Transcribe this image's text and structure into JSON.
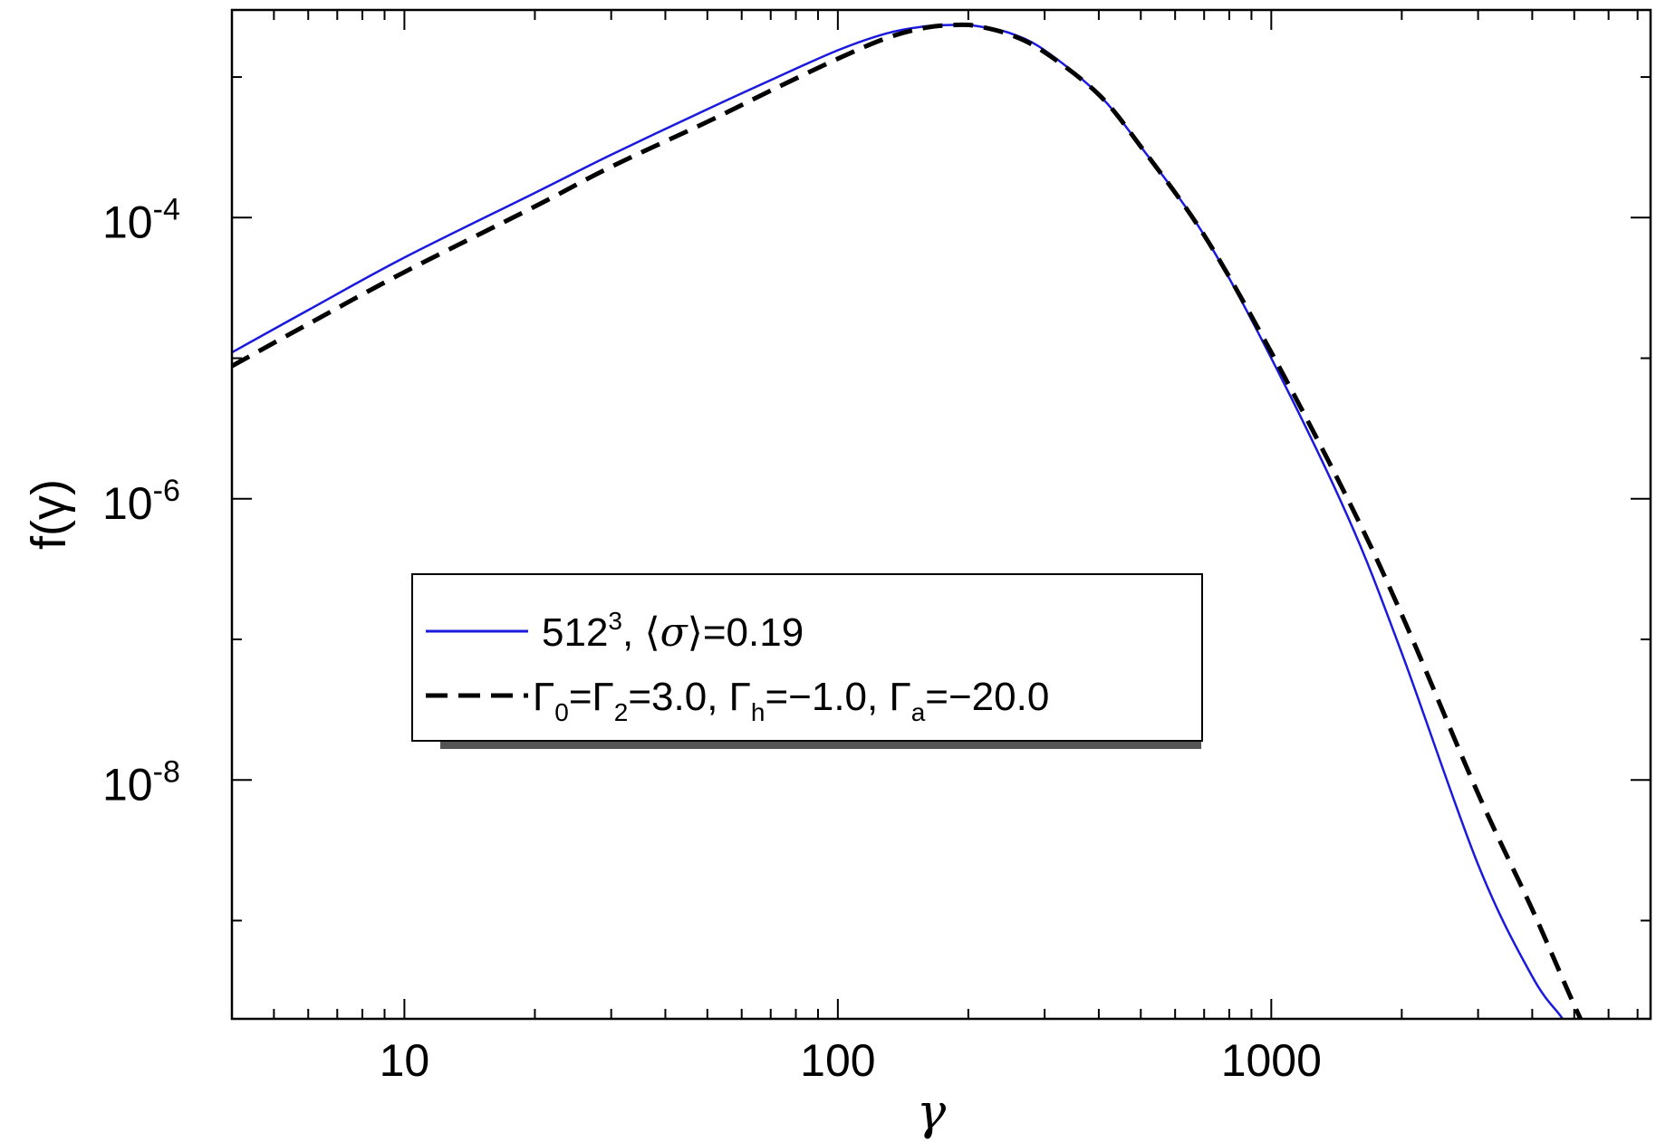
{
  "chart_data": {
    "type": "line",
    "title": "",
    "xlabel": "γ",
    "ylabel": "f(γ)",
    "xscale": "log",
    "yscale": "log",
    "xlim": [
      4,
      7500
    ],
    "ylim": [
      2e-10,
      0.003
    ],
    "xticks": [
      {
        "value": 10,
        "label": "10"
      },
      {
        "value": 100,
        "label": "100"
      },
      {
        "value": 1000,
        "label": "1000"
      }
    ],
    "yticks": [
      {
        "value": 0.0001,
        "base": "10",
        "exp": "-4"
      },
      {
        "value": 1e-06,
        "base": "10",
        "exp": "-6"
      },
      {
        "value": 1e-08,
        "base": "10",
        "exp": "-8"
      }
    ],
    "legend_position": "center-left",
    "series": [
      {
        "name": "512³, ⟨σ⟩=0.19",
        "color": "#1a1adf",
        "style": "solid",
        "x": [
          4,
          6,
          10,
          20,
          30,
          50,
          70,
          100,
          130,
          160,
          190,
          210,
          250,
          300,
          400,
          500,
          700,
          1000,
          1500,
          2000,
          3000,
          4000,
          4700,
          5000
        ],
        "y": [
          1.1e-05,
          2.2e-05,
          5.2e-05,
          0.00015,
          0.00028,
          0.00059,
          0.00095,
          0.00155,
          0.00205,
          0.0023,
          0.00235,
          0.0023,
          0.00205,
          0.00155,
          0.00075,
          0.00032,
          7.5e-05,
          1e-05,
          7.5e-07,
          8e-08,
          2.5e-09,
          4e-10,
          2e-10,
          1.4e-10
        ]
      },
      {
        "name": "Γ0=Γ2=3.0, Γh=−1.0, Γa=−20.0",
        "color": "#000000",
        "style": "dashed",
        "x": [
          4,
          6,
          10,
          20,
          30,
          50,
          70,
          100,
          130,
          160,
          190,
          210,
          250,
          300,
          400,
          500,
          700,
          1000,
          1500,
          2000,
          3000,
          4000,
          5000,
          5600
        ],
        "y": [
          8.8e-06,
          1.75e-05,
          4.1e-05,
          0.00012,
          0.00023,
          0.00048,
          0.0008,
          0.00135,
          0.0019,
          0.00225,
          0.00235,
          0.0023,
          0.002,
          0.0015,
          0.00075,
          0.00032,
          7.5e-05,
          1.1e-05,
          1e-06,
          1.5e-07,
          8e-09,
          1.2e-09,
          2.5e-10,
          1.2e-10
        ]
      }
    ],
    "legend_labels": [
      {
        "parts": [
          {
            "text": "512"
          },
          {
            "text": "3",
            "sup": true
          },
          {
            "text": ", ⟨"
          },
          {
            "text": "σ",
            "italic": true
          },
          {
            "text": "⟩=0.19"
          }
        ]
      },
      {
        "parts": [
          {
            "text": "Γ"
          },
          {
            "text": "0",
            "sub": true
          },
          {
            "text": "=Γ"
          },
          {
            "text": "2",
            "sub": true
          },
          {
            "text": "=3.0, Γ"
          },
          {
            "text": "h",
            "sub": true
          },
          {
            "text": "=−1.0, Γ"
          },
          {
            "text": "a",
            "sub": true
          },
          {
            "text": "=−20.0"
          }
        ]
      }
    ]
  }
}
